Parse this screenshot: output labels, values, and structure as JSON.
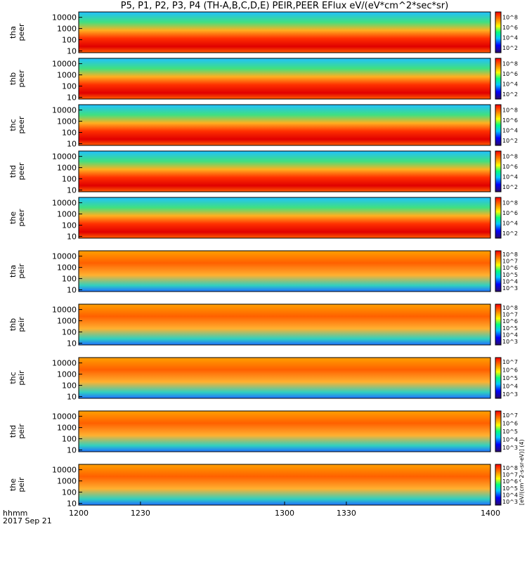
{
  "chart_data": {
    "type": "heatmap",
    "title": "P5, P1, P2, P3, P4 (TH-A,B,C,D,E) PEIR,PEER EFlux eV/(eV*cm^2*sec*sr)",
    "x_label_lines": [
      "hhmm",
      "2017 Sep 21"
    ],
    "x_ticks": [
      "1200",
      "1230",
      "1300",
      "1330",
      "1400"
    ],
    "x_range": [
      1200,
      1400
    ],
    "y_scale": "log",
    "y_ticks": [
      "10",
      "100",
      "1000",
      "10000"
    ],
    "colorbar_title": "[eV/(cm^2-s-sr-eV)] (4)",
    "panels": [
      {
        "label": [
          "tha",
          "peer"
        ],
        "ylim": [
          7,
          30000
        ],
        "cbar_ticks": [
          "10^2",
          "10^4",
          "10^6",
          "10^8"
        ]
      },
      {
        "label": [
          "thb",
          "peer"
        ],
        "ylim": [
          7,
          30000
        ],
        "cbar_ticks": [
          "10^2",
          "10^4",
          "10^6",
          "10^8"
        ]
      },
      {
        "label": [
          "thc",
          "peer"
        ],
        "ylim": [
          7,
          30000
        ],
        "cbar_ticks": [
          "10^2",
          "10^4",
          "10^6",
          "10^8"
        ]
      },
      {
        "label": [
          "thd",
          "peer"
        ],
        "ylim": [
          7,
          30000
        ],
        "cbar_ticks": [
          "10^2",
          "10^4",
          "10^6",
          "10^8"
        ]
      },
      {
        "label": [
          "the",
          "peer"
        ],
        "ylim": [
          7,
          30000
        ],
        "cbar_ticks": [
          "10^2",
          "10^4",
          "10^6",
          "10^8"
        ]
      },
      {
        "label": [
          "tha",
          "peir"
        ],
        "ylim": [
          7,
          30000
        ],
        "cbar_ticks": [
          "10^3",
          "10^4",
          "10^5",
          "10^6",
          "10^7",
          "10^8"
        ]
      },
      {
        "label": [
          "thb",
          "peir"
        ],
        "ylim": [
          7,
          30000
        ],
        "cbar_ticks": [
          "10^3",
          "10^4",
          "10^5",
          "10^6",
          "10^7",
          "10^8"
        ]
      },
      {
        "label": [
          "thc",
          "peir"
        ],
        "ylim": [
          7,
          30000
        ],
        "cbar_ticks": [
          "10^3",
          "10^4",
          "10^5",
          "10^6",
          "10^7"
        ]
      },
      {
        "label": [
          "thd",
          "peir"
        ],
        "ylim": [
          7,
          30000
        ],
        "cbar_ticks": [
          "10^3",
          "10^4",
          "10^5",
          "10^6",
          "10^7"
        ]
      },
      {
        "label": [
          "the",
          "peir"
        ],
        "ylim": [
          7,
          30000
        ],
        "cbar_ticks": [
          "10^3",
          "10^4",
          "10^5",
          "10^6",
          "10^7",
          "10^8"
        ]
      }
    ]
  }
}
